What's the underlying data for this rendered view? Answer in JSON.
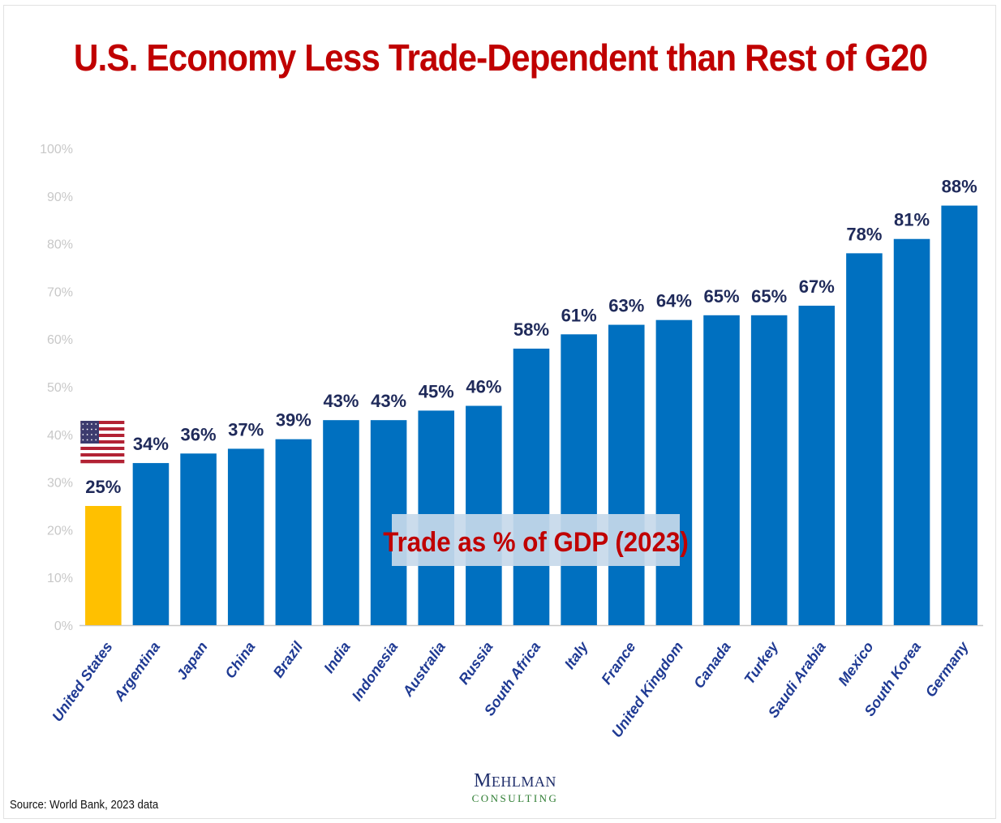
{
  "title": "U.S. Economy Less Trade-Dependent than Rest of G20",
  "source": "Source: World Bank, 2023 data",
  "logo": {
    "line1_initial": "M",
    "line1_rest": "EHLMAN",
    "line2": "CONSULTING"
  },
  "colors": {
    "highlight": "#ffc000",
    "bars": "#0070c0",
    "title": "#c00000",
    "value_labels": "#1f2a5a",
    "axis": "#c8c8c8"
  },
  "chart_data": {
    "type": "bar",
    "title": "U.S. Economy Less Trade-Dependent than Rest of G20",
    "annotation": "Trade as % of GDP (2023)",
    "categories": [
      "United States",
      "Argentina",
      "Japan",
      "China",
      "Brazil",
      "India",
      "Indonesia",
      "Australia",
      "Russia",
      "South Africa",
      "Italy",
      "France",
      "United Kingdom",
      "Canada",
      "Turkey",
      "Saudi Arabia",
      "Mexico",
      "South Korea",
      "Germany"
    ],
    "values": [
      25,
      34,
      36,
      37,
      39,
      43,
      43,
      45,
      46,
      58,
      61,
      63,
      64,
      65,
      65,
      67,
      78,
      81,
      88
    ],
    "value_labels": [
      "25%",
      "34%",
      "36%",
      "37%",
      "39%",
      "43%",
      "43%",
      "45%",
      "46%",
      "58%",
      "61%",
      "63%",
      "64%",
      "65%",
      "65%",
      "67%",
      "78%",
      "81%",
      "88%"
    ],
    "yticks": [
      "0%",
      "10%",
      "20%",
      "30%",
      "40%",
      "50%",
      "60%",
      "70%",
      "80%",
      "90%",
      "100%"
    ],
    "ylim": [
      0,
      100
    ],
    "highlight_category": "United States",
    "highlight_icon": "us-flag-icon",
    "grid": false,
    "xlabel": "",
    "ylabel": ""
  }
}
